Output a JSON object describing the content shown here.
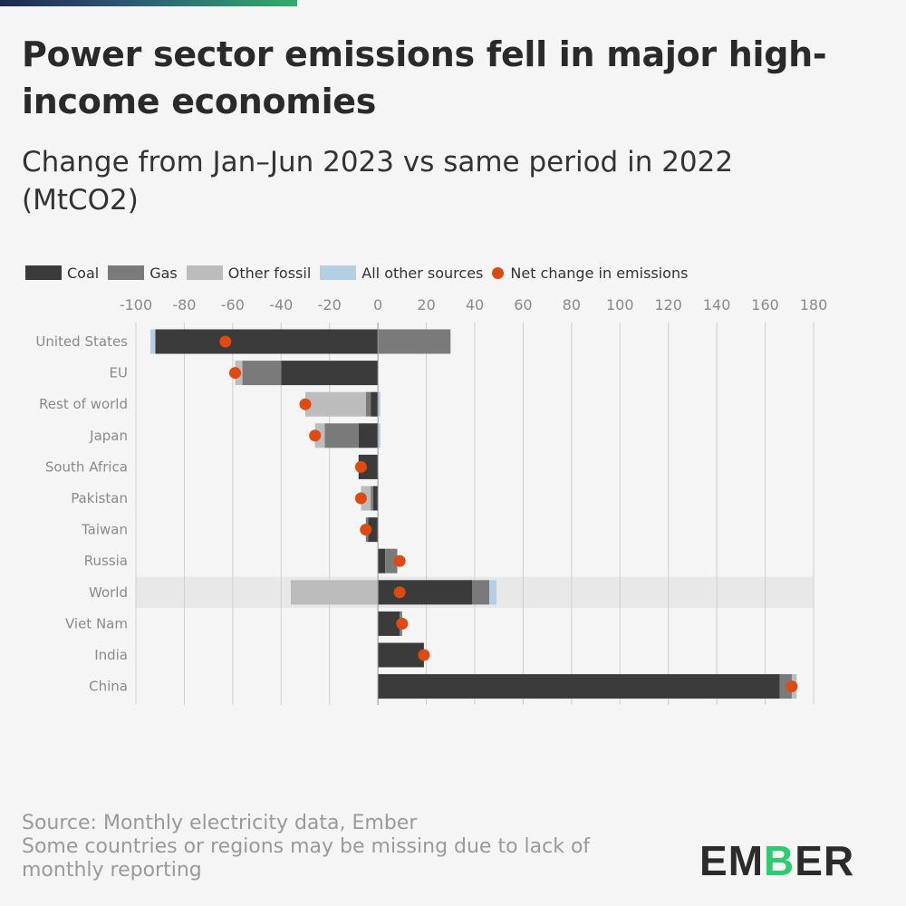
{
  "header": {
    "title": "Power sector emissions fell in major high-income economies",
    "subtitle": "Change from Jan–Jun 2023 vs same period in 2022 (MtCO2)"
  },
  "colors": {
    "coal": "#3b3b3b",
    "gas": "#7a7a7a",
    "other_fossil": "#bcbcbc",
    "all_other": "#b4cfe4",
    "net": "#e04a0f",
    "highlight_row": "#e8e8e8",
    "brand_green": "#2ecc71"
  },
  "legend": {
    "coal": "Coal",
    "gas": "Gas",
    "other_fossil": "Other fossil",
    "all_other": "All other sources",
    "net": "Net change in emissions"
  },
  "chart_data": {
    "type": "bar",
    "orientation": "horizontal",
    "stacked": "diverging",
    "title": "Change from Jan–Jun 2023 vs same period in 2022 (MtCO2)",
    "xlabel": "",
    "ylabel": "",
    "xlim": [
      -100,
      180
    ],
    "xticks": [
      -100,
      -80,
      -60,
      -40,
      -20,
      0,
      20,
      40,
      60,
      80,
      100,
      120,
      140,
      160,
      180
    ],
    "grid": true,
    "legend_position": "top",
    "highlight": "World",
    "categories": [
      "United States",
      "EU",
      "Rest of world",
      "Japan",
      "South Africa",
      "Pakistan",
      "Taiwan",
      "Russia",
      "World",
      "Viet Nam",
      "India",
      "China"
    ],
    "series": [
      {
        "name": "Coal",
        "key": "coal",
        "values": [
          -92,
          -40,
          -3,
          -8,
          -8,
          -2,
          -4,
          3,
          39,
          9,
          19,
          166
        ]
      },
      {
        "name": "Gas",
        "key": "gas",
        "values": [
          30,
          -16,
          -2,
          -14,
          0,
          -1,
          -1,
          5,
          7,
          1,
          0,
          5
        ]
      },
      {
        "name": "Other fossil",
        "key": "other_fossil",
        "values": [
          0,
          -3,
          -25,
          -4,
          0,
          -4,
          0,
          0,
          -36,
          0,
          0,
          2
        ]
      },
      {
        "name": "All other sources",
        "key": "all_other",
        "values": [
          -2,
          0,
          1,
          1,
          0,
          0,
          0,
          0,
          3,
          0,
          0,
          0
        ]
      }
    ],
    "net": {
      "name": "Net change in emissions",
      "values": [
        -63,
        -59,
        -30,
        -26,
        -7,
        -7,
        -5,
        9,
        9,
        10,
        19,
        171
      ]
    }
  },
  "footer": {
    "source": "Source: Monthly electricity data, Ember",
    "note": "Some countries or regions may be missing due to lack of monthly reporting"
  },
  "logo": {
    "text": "EMBER"
  }
}
